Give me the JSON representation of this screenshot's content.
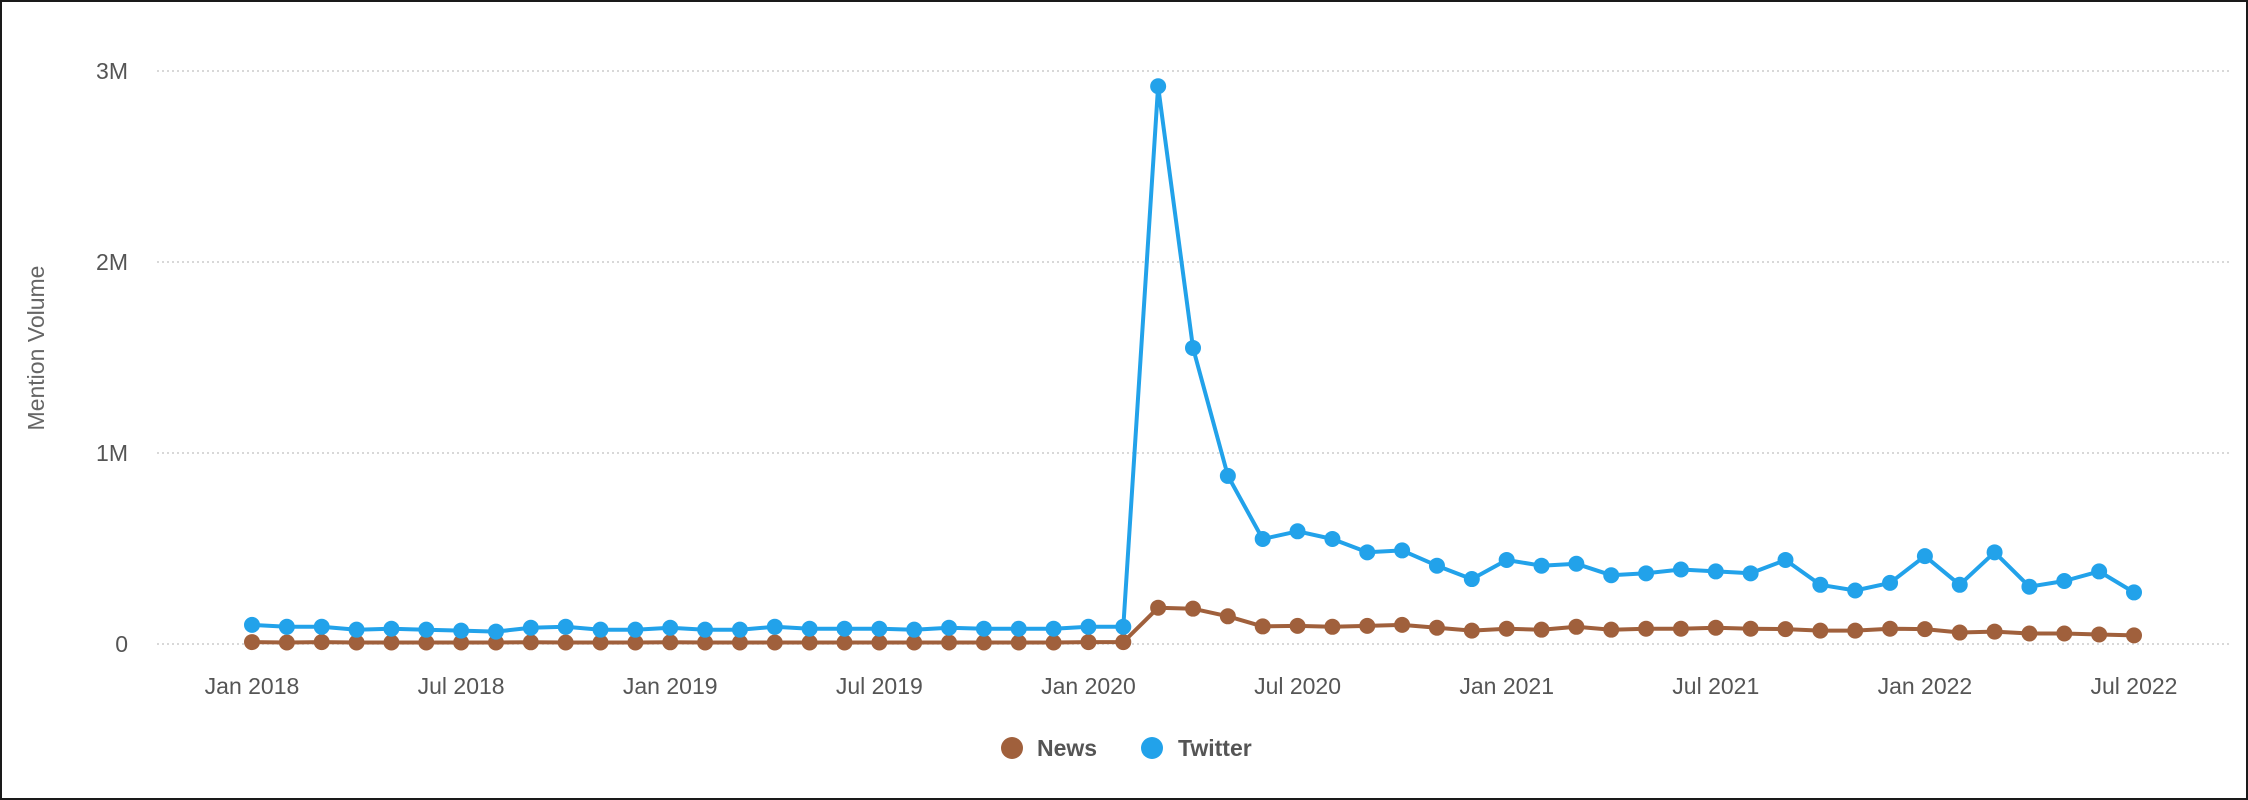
{
  "chart_data": {
    "type": "line",
    "xlabel": "",
    "ylabel": "Mention Volume",
    "ylim": [
      0,
      3000000
    ],
    "y_ticks": [
      {
        "value": 0,
        "label": "0"
      },
      {
        "value": 1000000,
        "label": "1M"
      },
      {
        "value": 2000000,
        "label": "2M"
      },
      {
        "value": 3000000,
        "label": "3M"
      }
    ],
    "x_ticks": [
      {
        "index": 0,
        "label": "Jan 2018"
      },
      {
        "index": 6,
        "label": "Jul 2018"
      },
      {
        "index": 12,
        "label": "Jan 2019"
      },
      {
        "index": 18,
        "label": "Jul 2019"
      },
      {
        "index": 24,
        "label": "Jan 2020"
      },
      {
        "index": 30,
        "label": "Jul 2020"
      },
      {
        "index": 36,
        "label": "Jan 2021"
      },
      {
        "index": 42,
        "label": "Jul 2021"
      },
      {
        "index": 48,
        "label": "Jan 2022"
      },
      {
        "index": 54,
        "label": "Jul 2022"
      }
    ],
    "x": [
      "2018-01",
      "2018-02",
      "2018-03",
      "2018-04",
      "2018-05",
      "2018-06",
      "2018-07",
      "2018-08",
      "2018-09",
      "2018-10",
      "2018-11",
      "2018-12",
      "2019-01",
      "2019-02",
      "2019-03",
      "2019-04",
      "2019-05",
      "2019-06",
      "2019-07",
      "2019-08",
      "2019-09",
      "2019-10",
      "2019-11",
      "2019-12",
      "2020-01",
      "2020-02",
      "2020-03",
      "2020-04",
      "2020-05",
      "2020-06",
      "2020-07",
      "2020-08",
      "2020-09",
      "2020-10",
      "2020-11",
      "2020-12",
      "2021-01",
      "2021-02",
      "2021-03",
      "2021-04",
      "2021-05",
      "2021-06",
      "2021-07",
      "2021-08",
      "2021-09",
      "2021-10",
      "2021-11",
      "2021-12",
      "2022-01",
      "2022-02",
      "2022-03",
      "2022-04",
      "2022-05",
      "2022-06",
      "2022-07"
    ],
    "grid": true,
    "legend_position": "bottom-center",
    "series": [
      {
        "name": "News",
        "color": "#a0603c",
        "values": [
          10000,
          8000,
          10000,
          8000,
          8000,
          8000,
          8000,
          8000,
          9000,
          8000,
          8000,
          8000,
          9000,
          8000,
          8000,
          8000,
          8000,
          8000,
          8000,
          8000,
          8000,
          8000,
          8000,
          8000,
          10000,
          10000,
          190000,
          185000,
          145000,
          92000,
          95000,
          90000,
          95000,
          100000,
          85000,
          70000,
          80000,
          75000,
          90000,
          75000,
          80000,
          80000,
          85000,
          80000,
          78000,
          70000,
          70000,
          80000,
          78000,
          60000,
          65000,
          55000,
          55000,
          50000,
          45000
        ]
      },
      {
        "name": "Twitter",
        "color": "#22a2ea",
        "values": [
          100000,
          90000,
          90000,
          75000,
          80000,
          75000,
          70000,
          65000,
          85000,
          90000,
          75000,
          75000,
          85000,
          75000,
          75000,
          90000,
          80000,
          80000,
          80000,
          75000,
          85000,
          80000,
          80000,
          80000,
          90000,
          90000,
          2920000,
          1550000,
          880000,
          550000,
          590000,
          550000,
          480000,
          490000,
          410000,
          340000,
          440000,
          410000,
          420000,
          360000,
          370000,
          390000,
          380000,
          370000,
          440000,
          310000,
          280000,
          320000,
          460000,
          310000,
          480000,
          300000,
          330000,
          380000,
          270000
        ]
      }
    ]
  }
}
